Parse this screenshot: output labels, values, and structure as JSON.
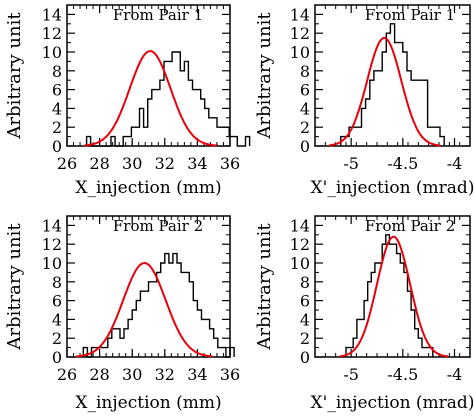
{
  "chart_data": [
    {
      "type": "histogram",
      "title": "From Pair 1",
      "xlabel": "X_injection (mm)",
      "ylabel": "Arbitrary unit",
      "xlim": [
        26,
        36
      ],
      "ylim": [
        0,
        15
      ],
      "xticks": [
        "26",
        "28",
        "30",
        "32",
        "34",
        "36"
      ],
      "yticks": [
        "0",
        "2",
        "4",
        "6",
        "8",
        "10",
        "12",
        "14"
      ],
      "bin_start": 27.2,
      "bin_width": 0.25,
      "counts": [
        1,
        0,
        0,
        0,
        0,
        0,
        1,
        0,
        0,
        1,
        1,
        2,
        2,
        4,
        2,
        5,
        6,
        6,
        7,
        9,
        9,
        10,
        10,
        8,
        9,
        7,
        6,
        6,
        5,
        4,
        3,
        3,
        2,
        2,
        2,
        1,
        1,
        0,
        0,
        1
      ],
      "fit": {
        "type": "gaussian",
        "mean": 31.1,
        "sigma": 1.25,
        "peak": 10.1,
        "color": "#e8000b"
      },
      "hist_color": "#000000"
    },
    {
      "type": "histogram",
      "title": "From Pair 1",
      "xlabel": "X'_injection (mrad)",
      "ylabel": "Arbitrary unit",
      "xlim": [
        -5.35,
        -3.85
      ],
      "ylim": [
        0,
        15
      ],
      "xticks": [
        "-5",
        "-4.5",
        "-4"
      ],
      "xtick_values": [
        -5,
        -4.5,
        -4
      ],
      "yticks": [
        "0",
        "2",
        "4",
        "6",
        "8",
        "10",
        "12",
        "14"
      ],
      "bin_start": -5.1,
      "bin_width": 0.04,
      "counts": [
        1,
        1,
        2,
        2,
        2,
        4,
        5,
        7,
        8,
        8,
        10,
        12,
        13,
        11,
        11,
        10,
        8,
        7,
        7,
        7,
        7,
        2,
        2,
        2,
        1
      ],
      "fit": {
        "type": "gaussian",
        "mean": -4.68,
        "sigma": 0.165,
        "peak": 11.5,
        "color": "#e8000b"
      },
      "hist_color": "#000000"
    },
    {
      "type": "histogram",
      "title": "From Pair 2",
      "xlabel": "X_injection (mm)",
      "ylabel": "Arbitrary unit",
      "xlim": [
        26,
        36
      ],
      "ylim": [
        0,
        15
      ],
      "xticks": [
        "26",
        "28",
        "30",
        "32",
        "34",
        "36"
      ],
      "yticks": [
        "0",
        "2",
        "4",
        "6",
        "8",
        "10",
        "12",
        "14"
      ],
      "bin_start": 27.0,
      "bin_width": 0.25,
      "counts": [
        1,
        0,
        1,
        1,
        1,
        1,
        2,
        3,
        3,
        2,
        3,
        4,
        5,
        6,
        7,
        7,
        8,
        8,
        9,
        10,
        11,
        10,
        11,
        10,
        9,
        9,
        8,
        6,
        5,
        4,
        4,
        3,
        2,
        1,
        1,
        0,
        1
      ],
      "fit": {
        "type": "gaussian",
        "mean": 30.75,
        "sigma": 1.3,
        "peak": 10.0,
        "color": "#e8000b"
      },
      "hist_color": "#000000"
    },
    {
      "type": "histogram",
      "title": "From Pair 2",
      "xlabel": "X'_injection (mrad)",
      "ylabel": "Arbitrary unit",
      "xlim": [
        -5.35,
        -3.85
      ],
      "ylim": [
        0,
        15
      ],
      "xticks": [
        "-5",
        "-4.5",
        "-4"
      ],
      "xtick_values": [
        -5,
        -4.5,
        -4
      ],
      "yticks": [
        "0",
        "2",
        "4",
        "6",
        "8",
        "10",
        "12",
        "14"
      ],
      "bin_start": -5.05,
      "bin_width": 0.035,
      "counts": [
        1,
        1,
        2,
        4,
        4,
        6,
        8,
        9,
        10,
        10,
        12,
        13,
        12,
        12,
        11,
        10,
        9,
        7,
        5,
        3,
        2,
        1,
        1,
        1
      ],
      "fit": {
        "type": "gaussian",
        "mean": -4.59,
        "sigma": 0.16,
        "peak": 12.8,
        "color": "#e8000b"
      },
      "hist_color": "#000000"
    }
  ]
}
